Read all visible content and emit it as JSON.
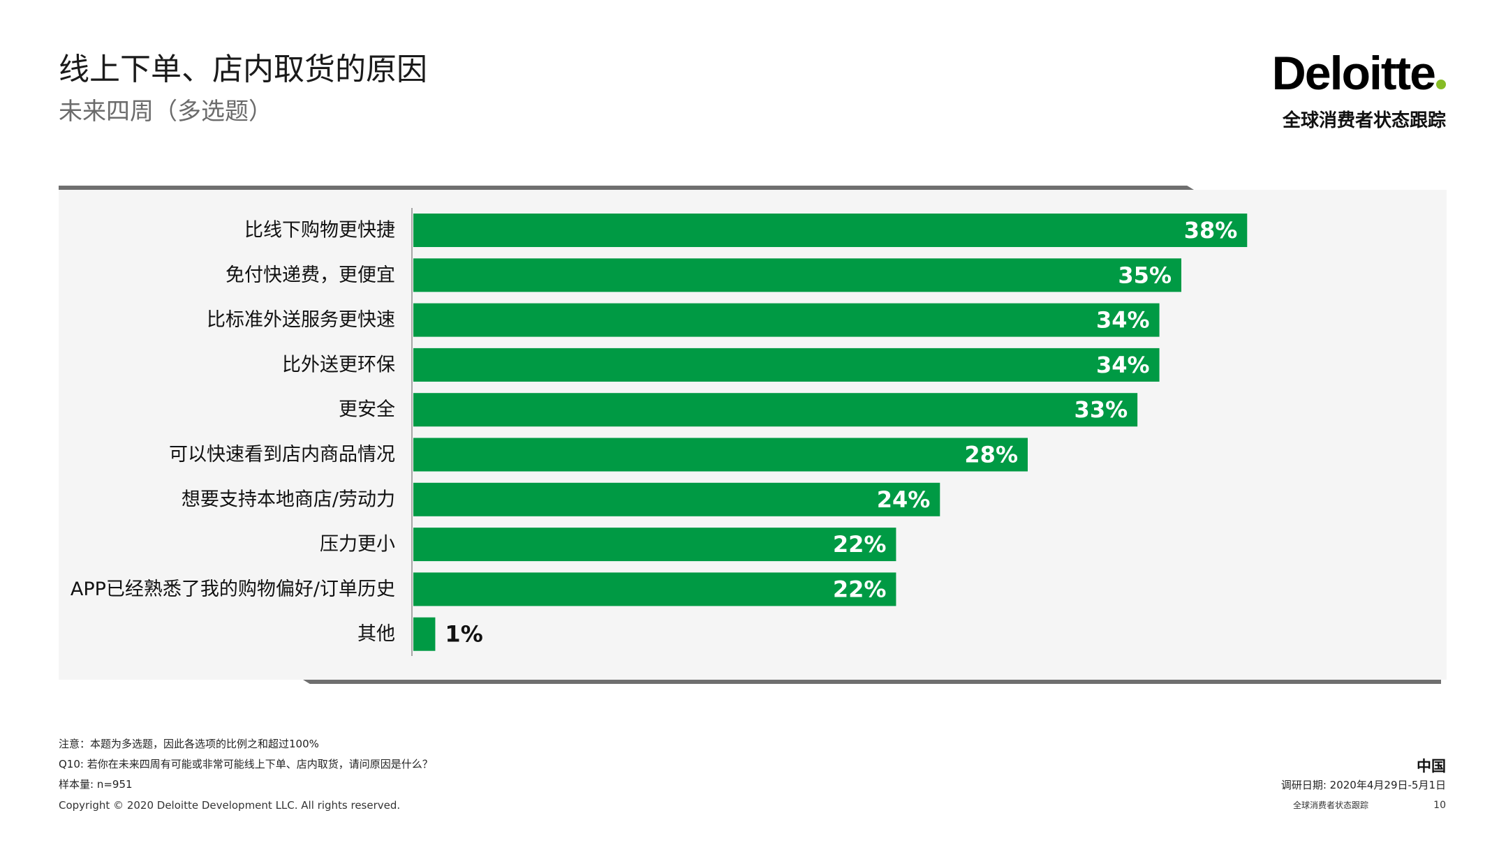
{
  "header": {
    "title": "线上下单、店内取货的原因",
    "subtitle": "未来四周（多选题）"
  },
  "brand": {
    "logo_text": "Deloitte",
    "logo_dot_color": "#86bc25",
    "tracker_name": "全球消费者状态跟踪"
  },
  "colors": {
    "bar": "#009a44",
    "panel": "#f5f5f5",
    "rule": "#6f6f6f"
  },
  "chart_data": {
    "type": "bar",
    "orientation": "horizontal",
    "title": "线上下单、店内取货的原因",
    "subtitle": "未来四周（多选题）",
    "categories": [
      "比线下购物更快捷",
      "免付快递费，更便宜",
      "比标准外送服务更快速",
      "比外送更环保",
      "更安全",
      "可以快速看到店内商品情况",
      "想要支持本地商店/劳动力",
      "压力更小",
      "APP已经熟悉了我的购物偏好/订单历史",
      "其他"
    ],
    "values": [
      38,
      35,
      34,
      34,
      33,
      28,
      24,
      22,
      22,
      1
    ],
    "value_labels": [
      "38%",
      "35%",
      "34%",
      "34%",
      "33%",
      "28%",
      "24%",
      "22%",
      "22%",
      "1%"
    ],
    "unit": "%",
    "xlim": [
      0,
      42
    ],
    "grid": false,
    "legend": "none"
  },
  "footer": {
    "note": "注意：本题为多选题，因此各选项的比例之和超过100%",
    "question": "Q10: 若你在未来四周有可能或非常可能线上下单、店内取货，请问原因是什么？",
    "sample_size": "样本量: n=951",
    "copyright": "Copyright © 2020 Deloitte Development LLC. All rights reserved.",
    "region": "中国",
    "survey_date": "调研日期: 2020年4月29日-5月1日",
    "tracker": "全球消费者状态跟踪",
    "page_number": "10"
  }
}
